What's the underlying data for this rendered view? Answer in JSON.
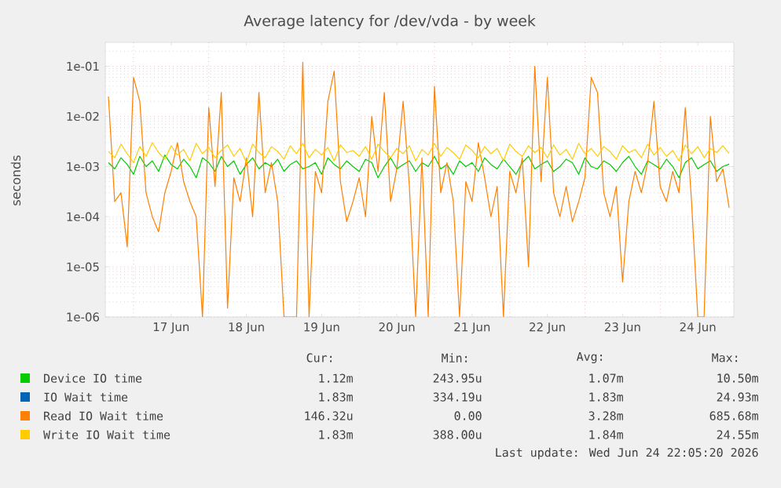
{
  "chart_data": {
    "type": "line",
    "title": "Average latency for /dev/vda - by week",
    "ylabel": "seconds",
    "log": "y",
    "grid": true,
    "legend": "bottom",
    "marker": "none",
    "line_style": "solid",
    "xlim": [
      "2026-06-16T15:00",
      "2026-06-24T23:30"
    ],
    "ylim": [
      1e-06,
      0.3
    ],
    "xticks": [
      {
        "value": "2026-06-17T00:00",
        "label": null
      },
      {
        "value": "2026-06-17T12:00",
        "label": "17 Jun"
      },
      {
        "value": "2026-06-18T00:00",
        "label": null
      },
      {
        "value": "2026-06-18T12:00",
        "label": "18 Jun"
      },
      {
        "value": "2026-06-19T00:00",
        "label": null
      },
      {
        "value": "2026-06-19T12:00",
        "label": "19 Jun"
      },
      {
        "value": "2026-06-20T00:00",
        "label": null
      },
      {
        "value": "2026-06-20T12:00",
        "label": "20 Jun"
      },
      {
        "value": "2026-06-21T00:00",
        "label": null
      },
      {
        "value": "2026-06-21T12:00",
        "label": "21 Jun"
      },
      {
        "value": "2026-06-22T00:00",
        "label": null
      },
      {
        "value": "2026-06-22T12:00",
        "label": "22 Jun"
      },
      {
        "value": "2026-06-23T00:00",
        "label": null
      },
      {
        "value": "2026-06-23T12:00",
        "label": "23 Jun"
      },
      {
        "value": "2026-06-24T00:00",
        "label": null
      },
      {
        "value": "2026-06-24T12:00",
        "label": "24 Jun"
      }
    ],
    "yticks": [
      {
        "value": 1e-06,
        "label": "1e-06"
      },
      {
        "value": 1e-05,
        "label": "1e-05"
      },
      {
        "value": 0.0001,
        "label": "1e-04"
      },
      {
        "value": 0.001,
        "label": "1e-03"
      },
      {
        "value": 0.01,
        "label": "1e-02"
      },
      {
        "value": 0.1,
        "label": "1e-01"
      }
    ],
    "x": [
      "2026-06-16T16:00",
      "2026-06-16T18:00",
      "2026-06-16T20:00",
      "2026-06-16T22:00",
      "2026-06-17T00:00",
      "2026-06-17T02:00",
      "2026-06-17T04:00",
      "2026-06-17T06:00",
      "2026-06-17T08:00",
      "2026-06-17T10:00",
      "2026-06-17T12:00",
      "2026-06-17T14:00",
      "2026-06-17T16:00",
      "2026-06-17T18:00",
      "2026-06-17T20:00",
      "2026-06-17T22:00",
      "2026-06-18T00:00",
      "2026-06-18T02:00",
      "2026-06-18T04:00",
      "2026-06-18T06:00",
      "2026-06-18T08:00",
      "2026-06-18T10:00",
      "2026-06-18T12:00",
      "2026-06-18T14:00",
      "2026-06-18T16:00",
      "2026-06-18T18:00",
      "2026-06-18T20:00",
      "2026-06-18T22:00",
      "2026-06-19T00:00",
      "2026-06-19T02:00",
      "2026-06-19T04:00",
      "2026-06-19T06:00",
      "2026-06-19T08:00",
      "2026-06-19T10:00",
      "2026-06-19T12:00",
      "2026-06-19T14:00",
      "2026-06-19T16:00",
      "2026-06-19T18:00",
      "2026-06-19T20:00",
      "2026-06-19T22:00",
      "2026-06-20T00:00",
      "2026-06-20T02:00",
      "2026-06-20T04:00",
      "2026-06-20T06:00",
      "2026-06-20T08:00",
      "2026-06-20T10:00",
      "2026-06-20T12:00",
      "2026-06-20T14:00",
      "2026-06-20T16:00",
      "2026-06-20T18:00",
      "2026-06-20T20:00",
      "2026-06-20T22:00",
      "2026-06-21T00:00",
      "2026-06-21T02:00",
      "2026-06-21T04:00",
      "2026-06-21T06:00",
      "2026-06-21T08:00",
      "2026-06-21T10:00",
      "2026-06-21T12:00",
      "2026-06-21T14:00",
      "2026-06-21T16:00",
      "2026-06-21T18:00",
      "2026-06-21T20:00",
      "2026-06-21T22:00",
      "2026-06-22T00:00",
      "2026-06-22T02:00",
      "2026-06-22T04:00",
      "2026-06-22T06:00",
      "2026-06-22T08:00",
      "2026-06-22T10:00",
      "2026-06-22T12:00",
      "2026-06-22T14:00",
      "2026-06-22T16:00",
      "2026-06-22T18:00",
      "2026-06-22T20:00",
      "2026-06-22T22:00",
      "2026-06-23T00:00",
      "2026-06-23T02:00",
      "2026-06-23T04:00",
      "2026-06-23T06:00",
      "2026-06-23T08:00",
      "2026-06-23T10:00",
      "2026-06-23T12:00",
      "2026-06-23T14:00",
      "2026-06-23T16:00",
      "2026-06-23T18:00",
      "2026-06-23T20:00",
      "2026-06-23T22:00",
      "2026-06-24T00:00",
      "2026-06-24T02:00",
      "2026-06-24T04:00",
      "2026-06-24T06:00",
      "2026-06-24T08:00",
      "2026-06-24T10:00",
      "2026-06-24T12:00",
      "2026-06-24T14:00",
      "2026-06-24T16:00",
      "2026-06-24T18:00",
      "2026-06-24T20:00",
      "2026-06-24T22:00"
    ],
    "series": [
      {
        "name": "Device IO time",
        "color": "#00cc00",
        "values": [
          0.0012,
          0.0009,
          0.0015,
          0.0011,
          0.0007,
          0.0016,
          0.001,
          0.0013,
          0.0008,
          0.0017,
          0.0011,
          0.0009,
          0.0014,
          0.001,
          0.0006,
          0.0015,
          0.0012,
          0.0008,
          0.0016,
          0.001,
          0.0013,
          0.0007,
          0.0011,
          0.0015,
          0.0009,
          0.0012,
          0.001,
          0.0014,
          0.0008,
          0.0011,
          0.0013,
          0.0009,
          0.001,
          0.0012,
          0.0007,
          0.0015,
          0.0011,
          0.0009,
          0.0013,
          0.001,
          0.0008,
          0.0014,
          0.0012,
          0.0006,
          0.001,
          0.0015,
          0.0009,
          0.0011,
          0.0013,
          0.0008,
          0.0012,
          0.001,
          0.0016,
          0.0009,
          0.0011,
          0.0007,
          0.0013,
          0.001,
          0.0012,
          0.0008,
          0.0015,
          0.0011,
          0.0009,
          0.0014,
          0.001,
          0.0007,
          0.0012,
          0.0016,
          0.0009,
          0.0011,
          0.0013,
          0.0008,
          0.001,
          0.0014,
          0.0012,
          0.0007,
          0.0015,
          0.001,
          0.0009,
          0.0013,
          0.0011,
          0.0008,
          0.0012,
          0.0016,
          0.001,
          0.0007,
          0.0013,
          0.0011,
          0.0009,
          0.0014,
          0.001,
          0.0006,
          0.0012,
          0.0015,
          0.0009,
          0.0011,
          0.0013,
          0.0008,
          0.001,
          0.00112
        ]
      },
      {
        "name": "IO Wait time",
        "color": "#0066b3",
        "values": [
          null,
          null,
          null,
          null,
          null,
          null,
          null,
          null,
          null,
          null,
          null,
          null,
          null,
          null,
          null,
          null,
          null,
          null,
          null,
          null,
          null,
          null,
          null,
          null,
          null,
          null,
          null,
          null,
          null,
          null,
          null,
          null,
          null,
          null,
          null,
          null,
          null,
          null,
          null,
          null,
          null,
          null,
          null,
          null,
          null,
          null,
          null,
          null,
          null,
          null,
          null,
          null,
          null,
          null,
          null,
          null,
          null,
          null,
          null,
          null,
          null,
          null,
          null,
          null,
          null,
          null,
          null,
          null,
          null,
          null,
          null,
          null,
          null,
          null,
          null,
          null,
          null,
          null,
          null,
          null,
          null,
          null,
          null,
          null,
          null,
          null,
          null,
          null,
          null,
          null,
          null,
          null,
          null,
          null,
          null,
          null,
          null,
          null,
          null,
          null
        ]
      },
      {
        "name": "Read IO Wait time",
        "color": "#ff8000",
        "values": [
          0.025,
          0.0002,
          0.0003,
          2.5e-05,
          0.06,
          0.02,
          0.0003,
          0.0001,
          5e-05,
          0.0003,
          0.0008,
          0.003,
          0.0005,
          0.0002,
          0.0001,
          1e-06,
          0.015,
          0.0004,
          0.03,
          1.5e-06,
          0.0006,
          0.0002,
          0.0015,
          0.0001,
          0.03,
          0.0003,
          0.0012,
          0.0002,
          1e-06,
          1e-06,
          1e-06,
          0.12,
          1e-06,
          0.0008,
          0.0003,
          0.02,
          0.08,
          0.0005,
          8e-05,
          0.0002,
          0.0006,
          0.0001,
          0.01,
          0.0008,
          0.03,
          0.0002,
          0.0009,
          0.02,
          0.0004,
          1e-06,
          0.0015,
          1e-06,
          0.04,
          0.0003,
          0.0012,
          0.0002,
          1e-06,
          0.0005,
          0.0002,
          0.003,
          0.0006,
          0.0001,
          0.0004,
          1e-06,
          0.0008,
          0.0003,
          0.0015,
          1e-05,
          0.1,
          0.0005,
          0.06,
          0.0003,
          0.0001,
          0.0004,
          8e-05,
          0.0002,
          0.0006,
          0.06,
          0.03,
          0.0003,
          0.0001,
          0.0004,
          5e-06,
          0.0002,
          0.0008,
          0.0003,
          0.0012,
          0.02,
          0.0004,
          0.0002,
          0.0008,
          0.0003,
          0.015,
          0.0002,
          1e-06,
          1e-06,
          0.01,
          0.0005,
          0.0009,
          0.00015
        ]
      },
      {
        "name": "Write IO Wait time",
        "color": "#ffcc00",
        "values": [
          0.002,
          0.0015,
          0.0028,
          0.0018,
          0.0012,
          0.0025,
          0.0016,
          0.003,
          0.0019,
          0.0014,
          0.0026,
          0.0017,
          0.0022,
          0.0013,
          0.0029,
          0.0018,
          0.0024,
          0.0015,
          0.0021,
          0.0027,
          0.0016,
          0.0023,
          0.0012,
          0.0028,
          0.0019,
          0.0015,
          0.0025,
          0.002,
          0.0014,
          0.0026,
          0.0018,
          0.0029,
          0.0015,
          0.0022,
          0.0017,
          0.0024,
          0.0013,
          0.0027,
          0.0019,
          0.0021,
          0.0016,
          0.0025,
          0.0014,
          0.0028,
          0.002,
          0.0015,
          0.0023,
          0.0018,
          0.0026,
          0.0013,
          0.0022,
          0.0017,
          0.0029,
          0.0016,
          0.0024,
          0.0019,
          0.0014,
          0.0027,
          0.0021,
          0.0015,
          0.0025,
          0.0018,
          0.0023,
          0.0013,
          0.0028,
          0.002,
          0.0016,
          0.0026,
          0.0019,
          0.0024,
          0.0015,
          0.0027,
          0.0017,
          0.0022,
          0.0014,
          0.0029,
          0.0018,
          0.0023,
          0.0016,
          0.0025,
          0.002,
          0.0014,
          0.0026,
          0.0019,
          0.0022,
          0.0015,
          0.0028,
          0.0017,
          0.0024,
          0.0016,
          0.0021,
          0.0013,
          0.0027,
          0.0018,
          0.0025,
          0.0015,
          0.0023,
          0.0019,
          0.0026,
          0.00183
        ]
      }
    ],
    "annotations": [
      "Cur:",
      "Min:",
      "Avg:",
      "Max:",
      "1.12m",
      "243.95u",
      "1.07m",
      "10.50m",
      "1.83m",
      "334.19u",
      "1.83m",
      "24.93m",
      "146.32u",
      "0.00",
      "3.28m",
      "685.68m",
      "1.83m",
      "388.00u",
      "1.84m",
      "24.55m",
      "Last update: Wed Jun 24 22:05:20 2026"
    ]
  }
}
